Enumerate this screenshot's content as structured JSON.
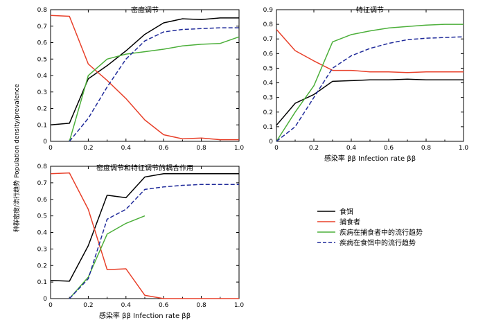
{
  "figure": {
    "ylabel": "种群密度/流行趋势 Population density/prevalence",
    "colors": {
      "prey": "#000000",
      "predator": "#e8402a",
      "pred_prev": "#4caf3a",
      "prey_prev": "#1f2a9a"
    }
  },
  "legend": {
    "prey": "食饵",
    "predator": "捕食者",
    "pred_prev": "疾病在捕食者中的流行趋势",
    "prey_prev": "疾病在食饵中的流行趋势"
  },
  "chart_data": [
    {
      "type": "line",
      "title": "密度调节",
      "xlabel": "",
      "xlim": [
        0,
        1.0
      ],
      "ylim": [
        0,
        0.8
      ],
      "xticks": [
        "0",
        "0.2",
        "0.4",
        "0.6",
        "0.8",
        "1.0"
      ],
      "yticks": [
        "0",
        "0.1",
        "0.2",
        "0.3",
        "0.4",
        "0.5",
        "0.6",
        "0.7",
        "0.8"
      ],
      "series": [
        {
          "name": "食饵",
          "key": "prey",
          "x": [
            0,
            0.1,
            0.2,
            0.3,
            0.4,
            0.5,
            0.6,
            0.7,
            0.8,
            0.9,
            1.0
          ],
          "y": [
            0.1,
            0.11,
            0.38,
            0.46,
            0.55,
            0.65,
            0.72,
            0.745,
            0.74,
            0.75,
            0.75
          ]
        },
        {
          "name": "捕食者",
          "key": "predator",
          "x": [
            0,
            0.1,
            0.2,
            0.3,
            0.4,
            0.5,
            0.6,
            0.7,
            0.8,
            0.9,
            1.0
          ],
          "y": [
            0.765,
            0.76,
            0.47,
            0.37,
            0.26,
            0.13,
            0.04,
            0.015,
            0.02,
            0.01,
            0.01
          ]
        },
        {
          "name": "疾病在捕食者中的流行趋势",
          "key": "pred_prev",
          "x": [
            0.1,
            0.2,
            0.3,
            0.4,
            0.5,
            0.6,
            0.7,
            0.8,
            0.9,
            1.0
          ],
          "y": [
            0.0,
            0.4,
            0.5,
            0.53,
            0.545,
            0.56,
            0.58,
            0.59,
            0.595,
            0.635
          ]
        },
        {
          "name": "疾病在食饵中的流行趋势",
          "key": "prey_prev",
          "x": [
            0.1,
            0.2,
            0.3,
            0.4,
            0.5,
            0.6,
            0.7,
            0.8,
            0.9,
            1.0
          ],
          "y": [
            0.0,
            0.14,
            0.33,
            0.5,
            0.61,
            0.665,
            0.68,
            0.685,
            0.69,
            0.69
          ]
        }
      ]
    },
    {
      "type": "line",
      "title": "特征调节",
      "xlabel": "感染率 ββ Infection rate ββ",
      "xlim": [
        0,
        1.0
      ],
      "ylim": [
        0,
        0.9
      ],
      "xticks": [
        "0",
        "0.2",
        "0.4",
        "0.6",
        "0.8",
        "1.0"
      ],
      "yticks": [
        "0",
        "0.1",
        "0.2",
        "0.3",
        "0.4",
        "0.5",
        "0.6",
        "0.7",
        "0.8",
        "0.9"
      ],
      "series": [
        {
          "name": "食饵",
          "key": "prey",
          "x": [
            0,
            0.1,
            0.2,
            0.3,
            0.4,
            0.5,
            0.6,
            0.7,
            0.8,
            0.9,
            1.0
          ],
          "y": [
            0.11,
            0.26,
            0.32,
            0.41,
            0.415,
            0.42,
            0.42,
            0.425,
            0.42,
            0.42,
            0.42
          ]
        },
        {
          "name": "捕食者",
          "key": "predator",
          "x": [
            0,
            0.1,
            0.2,
            0.3,
            0.4,
            0.5,
            0.6,
            0.7,
            0.8,
            0.9,
            1.0
          ],
          "y": [
            0.765,
            0.62,
            0.55,
            0.485,
            0.485,
            0.475,
            0.475,
            0.47,
            0.475,
            0.475,
            0.475
          ]
        },
        {
          "name": "疾病在捕食者中的流行趋势",
          "key": "pred_prev",
          "x": [
            0,
            0.1,
            0.2,
            0.3,
            0.4,
            0.5,
            0.6,
            0.7,
            0.8,
            0.9,
            1.0
          ],
          "y": [
            0.0,
            0.2,
            0.38,
            0.68,
            0.73,
            0.755,
            0.775,
            0.785,
            0.795,
            0.8,
            0.8
          ]
        },
        {
          "name": "疾病在食饵中的流行趋势",
          "key": "prey_prev",
          "x": [
            0,
            0.1,
            0.2,
            0.3,
            0.4,
            0.5,
            0.6,
            0.7,
            0.8,
            0.9,
            1.0
          ],
          "y": [
            0.0,
            0.1,
            0.3,
            0.5,
            0.585,
            0.635,
            0.67,
            0.695,
            0.705,
            0.71,
            0.715
          ]
        }
      ]
    },
    {
      "type": "line",
      "title": "密度调节和特征调节的耦合作用",
      "xlabel": "感染率 ββ Infection rate ββ",
      "xlim": [
        0,
        1.0
      ],
      "ylim": [
        0,
        0.8
      ],
      "xticks": [
        "0",
        "0.2",
        "0.4",
        "0.6",
        "0.8",
        "1.0"
      ],
      "yticks": [
        "0",
        "0.1",
        "0.2",
        "0.3",
        "0.4",
        "0.5",
        "0.6",
        "0.7",
        "0.8"
      ],
      "series": [
        {
          "name": "食饵",
          "key": "prey",
          "x": [
            0,
            0.1,
            0.2,
            0.3,
            0.4,
            0.5,
            0.6,
            0.7,
            0.8,
            0.9,
            1.0
          ],
          "y": [
            0.11,
            0.105,
            0.32,
            0.625,
            0.61,
            0.735,
            0.755,
            0.755,
            0.755,
            0.755,
            0.755
          ]
        },
        {
          "name": "捕食者",
          "key": "predator",
          "x": [
            0,
            0.1,
            0.2,
            0.3,
            0.4,
            0.5,
            0.6,
            0.7,
            0.8,
            0.9,
            1.0
          ],
          "y": [
            0.755,
            0.76,
            0.54,
            0.175,
            0.18,
            0.02,
            0.0,
            0.0,
            0.0,
            0.0,
            0.0
          ]
        },
        {
          "name": "疾病在捕食者中的流行趋势",
          "key": "pred_prev",
          "x": [
            0.1,
            0.2,
            0.3,
            0.4,
            0.5
          ],
          "y": [
            0.0,
            0.13,
            0.39,
            0.455,
            0.5
          ]
        },
        {
          "name": "疾病在食饵中的流行趋势",
          "key": "prey_prev",
          "x": [
            0.1,
            0.2,
            0.3,
            0.4,
            0.5,
            0.6,
            0.7,
            0.8,
            0.9,
            1.0
          ],
          "y": [
            0.0,
            0.12,
            0.48,
            0.54,
            0.66,
            0.675,
            0.685,
            0.69,
            0.69,
            0.69
          ]
        }
      ]
    }
  ]
}
